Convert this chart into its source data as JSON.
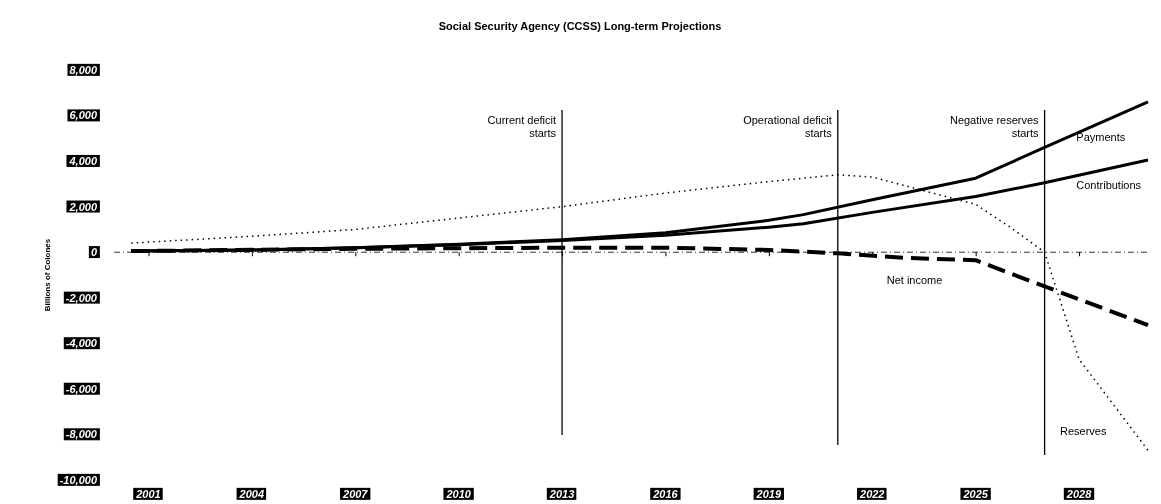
{
  "chart_data": {
    "type": "line",
    "title": "Social Security Agency (CCSS) Long-term Projections",
    "ylabel": "Billions of Colones",
    "xlim": [
      2000,
      2030
    ],
    "xticks": [
      2001,
      2004,
      2007,
      2010,
      2013,
      2016,
      2019,
      2022,
      2025,
      2028
    ],
    "ylim": [
      -10000,
      8000
    ],
    "yticks": [
      {
        "value": -10000,
        "label": "-10,000"
      },
      {
        "value": -8000,
        "label": "-8,000"
      },
      {
        "value": -6000,
        "label": "-6,000"
      },
      {
        "value": -4000,
        "label": "-4,000"
      },
      {
        "value": -2000,
        "label": "-2,000"
      },
      0,
      {
        "value": 2000,
        "label": "2,000"
      },
      {
        "value": 4000,
        "label": "4,000"
      },
      {
        "value": 6000,
        "label": "6,000"
      },
      {
        "value": 8000,
        "label": "8,000"
      }
    ],
    "grid": false,
    "marker": "none",
    "series": [
      {
        "name": "Payments",
        "color": "#000000",
        "line_style": "solid",
        "x": [
          2000.5,
          2004,
          2007,
          2010,
          2013,
          2016,
          2019,
          2020,
          2022,
          2025,
          2027,
          2030
        ],
        "values": [
          50,
          100,
          200,
          350,
          550,
          850,
          1400,
          1650,
          2300,
          3250,
          4600,
          6600
        ]
      },
      {
        "name": "Contributions",
        "color": "#000000",
        "line_style": "solid",
        "x": [
          2000.5,
          2004,
          2007,
          2010,
          2013,
          2016,
          2019,
          2020,
          2022,
          2025,
          2027,
          2030
        ],
        "values": [
          50,
          100,
          200,
          330,
          520,
          750,
          1100,
          1250,
          1750,
          2450,
          3050,
          4050
        ]
      },
      {
        "name": "Net income",
        "color": "#000000",
        "line_style": "dashed",
        "x": [
          2000.5,
          2007,
          2013,
          2016,
          2019,
          2021,
          2023,
          2025,
          2027,
          2030
        ],
        "values": [
          50,
          150,
          200,
          200,
          100,
          -50,
          -250,
          -350,
          -1500,
          -3200
        ]
      },
      {
        "name": "Reserves",
        "color": "#000000",
        "line_style": "dotted",
        "x": [
          2000.5,
          2004,
          2007,
          2010,
          2013,
          2016,
          2019,
          2021,
          2022,
          2023.5,
          2025,
          2026,
          2027,
          2028,
          2030
        ],
        "values": [
          400,
          700,
          1000,
          1500,
          2000,
          2600,
          3100,
          3400,
          3300,
          2700,
          2100,
          1100,
          0,
          -4700,
          -8700
        ]
      }
    ],
    "ref_lines": [
      {
        "axis": "x",
        "value": 2013,
        "label": "Current deficit starts",
        "color": "#000000"
      },
      {
        "axis": "x",
        "value": 2021,
        "label": "Operational deficit starts",
        "color": "#000000"
      },
      {
        "axis": "x",
        "value": 2027,
        "label": "Negative reserves starts",
        "color": "#000000"
      },
      {
        "axis": "y",
        "value": 0,
        "color": "#000000",
        "line_style": "dashed"
      }
    ]
  }
}
